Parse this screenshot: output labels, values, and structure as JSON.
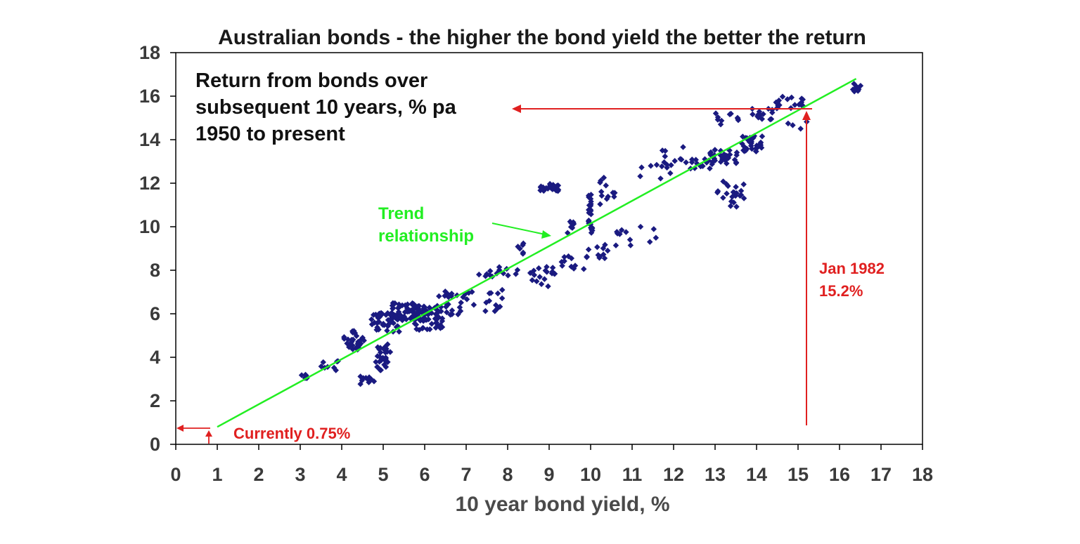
{
  "chart_data": {
    "type": "scatter",
    "title": "Australian bonds - the higher the bond yield the better the return",
    "xlabel": "10 year bond yield, %",
    "ylabel": "",
    "inset_label": [
      "Return from bonds over",
      "subsequent 10 years, % pa",
      "1950 to present"
    ],
    "xlim": [
      0,
      18
    ],
    "ylim": [
      0,
      18
    ],
    "x_ticks": [
      "0",
      "1",
      "2",
      "3",
      "4",
      "5",
      "6",
      "7",
      "8",
      "9",
      "10",
      "11",
      "12",
      "13",
      "14",
      "15",
      "16",
      "17",
      "18"
    ],
    "y_ticks": [
      "0",
      "2",
      "4",
      "6",
      "8",
      "10",
      "12",
      "14",
      "16",
      "18"
    ],
    "grid": false,
    "trend_line": {
      "label": [
        "Trend",
        "relationship"
      ],
      "from": [
        1.0,
        0.8
      ],
      "to": [
        16.4,
        16.8
      ]
    },
    "annotations": {
      "current": "Currently 0.75%",
      "jan1982": [
        "Jan 1982",
        "15.2%"
      ]
    },
    "colors": {
      "points": "#1a1a80",
      "trend": "#22ee22",
      "annotation": "#e02020",
      "axis": "#000000"
    },
    "clusters": [
      [
        3.1,
        3.1,
        0.1,
        0.1,
        8
      ],
      [
        3.7,
        3.6,
        0.25,
        0.3,
        8
      ],
      [
        4.3,
        4.8,
        0.25,
        0.45,
        28
      ],
      [
        4.6,
        2.9,
        0.18,
        0.25,
        10
      ],
      [
        5.0,
        4.0,
        0.18,
        0.6,
        30
      ],
      [
        5.05,
        5.6,
        0.35,
        0.45,
        40
      ],
      [
        5.6,
        6.1,
        0.4,
        0.4,
        70
      ],
      [
        6.1,
        5.8,
        0.35,
        0.55,
        45
      ],
      [
        6.6,
        6.5,
        0.3,
        0.55,
        22
      ],
      [
        7.4,
        6.6,
        0.6,
        0.5,
        18
      ],
      [
        7.8,
        7.9,
        0.5,
        0.25,
        14
      ],
      [
        8.3,
        9.0,
        0.08,
        0.25,
        6
      ],
      [
        8.8,
        7.7,
        0.35,
        0.5,
        18
      ],
      [
        9.0,
        11.8,
        0.25,
        0.18,
        24
      ],
      [
        9.5,
        10.0,
        0.1,
        0.3,
        8
      ],
      [
        9.6,
        8.4,
        0.3,
        0.35,
        10
      ],
      [
        10.0,
        10.6,
        0.05,
        1.0,
        26
      ],
      [
        10.2,
        8.9,
        0.3,
        0.35,
        12
      ],
      [
        10.4,
        11.7,
        0.2,
        0.7,
        12
      ],
      [
        11.0,
        9.6,
        0.6,
        0.5,
        12
      ],
      [
        11.5,
        12.6,
        0.5,
        0.4,
        8
      ],
      [
        12.1,
        13.2,
        0.4,
        0.55,
        12
      ],
      [
        12.7,
        12.9,
        0.3,
        0.25,
        14
      ],
      [
        13.2,
        13.2,
        0.35,
        0.35,
        28
      ],
      [
        13.4,
        11.5,
        0.35,
        0.65,
        22
      ],
      [
        13.3,
        15.0,
        0.3,
        0.3,
        10
      ],
      [
        13.9,
        13.8,
        0.25,
        0.4,
        32
      ],
      [
        14.1,
        15.2,
        0.3,
        0.3,
        14
      ],
      [
        14.8,
        15.7,
        0.35,
        0.3,
        18
      ],
      [
        15.0,
        14.7,
        0.25,
        0.2,
        4
      ],
      [
        16.4,
        16.4,
        0.12,
        0.2,
        8
      ]
    ]
  }
}
